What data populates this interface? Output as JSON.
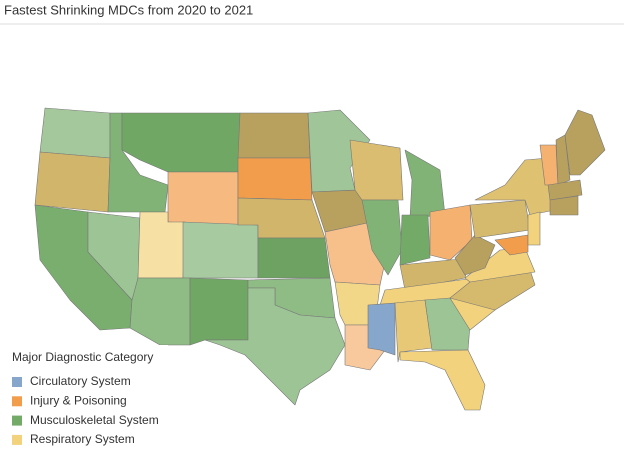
{
  "title": "Fastest Shrinking MDCs from 2020 to 2021",
  "legend": {
    "title": "Major Diagnostic Category",
    "items": [
      {
        "name": "Circulatory System",
        "color": "#86a7cb"
      },
      {
        "name": "Injury & Poisoning",
        "color": "#f29d4b"
      },
      {
        "name": "Musculoskeletal System",
        "color": "#73aa67"
      },
      {
        "name": "Respiratory System",
        "color": "#f2d27c"
      }
    ]
  }
}
